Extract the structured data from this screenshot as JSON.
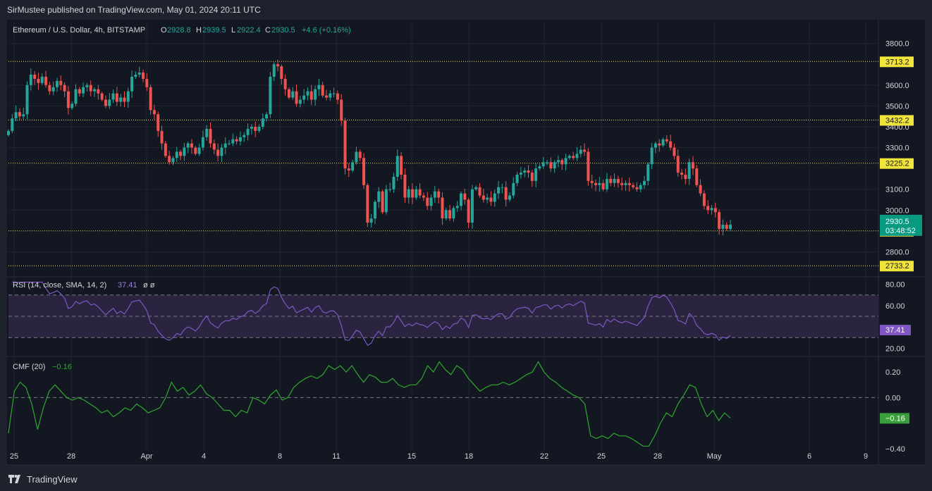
{
  "header": {
    "published": "SirMustee published on TradingView.com, May 01, 2024 20:11 UTC"
  },
  "legend": {
    "symbol": "Ethereum / U.S. Dollar, 4h, BITSTAMP",
    "o_label": "O",
    "o_value": "2928.8",
    "h_label": "H",
    "h_value": "2939.5",
    "l_label": "L",
    "l_value": "2922.4",
    "c_label": "C",
    "c_value": "2930.5",
    "change": "+4.6 (+0.16%)"
  },
  "rsi_legend": {
    "label": "RSI (14, close, SMA, 14, 2)",
    "value": "37.41",
    "extra": "ø  ø"
  },
  "cmf_legend": {
    "label": "CMF (20)",
    "value": "−0.16"
  },
  "footer": {
    "brand": "TradingView"
  },
  "colors": {
    "background": "#131722",
    "up": "#26a69a",
    "down": "#ef5350",
    "level_line": "#f5e25b",
    "level_label_bg": "#f0e43a",
    "last_price_bg": "#089981",
    "rsi_line": "#7e57c2",
    "rsi_band": "#2a2440",
    "cmf_line": "#2ea82e",
    "cmf_label_bg": "#3a9f3a",
    "axis_text": "#d1d4dc"
  },
  "chart_data": [
    {
      "type": "candlestick",
      "name": "Ethereum / U.S. Dollar, 4h, BITSTAMP",
      "x_ticks": [
        "25",
        "28",
        "Apr",
        "4",
        "8",
        "11",
        "15",
        "18",
        "22",
        "25",
        "28",
        "May",
        "6",
        "9"
      ],
      "y_ticks": [
        "3800.0",
        "3600.0",
        "3500.0",
        "3400.0",
        "3300.0",
        "3100.0",
        "3000.0",
        "2800.0"
      ],
      "ylim": [
        2690,
        3900
      ],
      "levels": [
        "3713.2",
        "3432.2",
        "3225.2",
        "2900.4",
        "2733.2"
      ],
      "last_price": "2930.5",
      "countdown": "03:48:52",
      "closes": [
        3380,
        3440,
        3470,
        3450,
        3460,
        3600,
        3650,
        3630,
        3610,
        3640,
        3600,
        3570,
        3590,
        3620,
        3600,
        3570,
        3490,
        3510,
        3580,
        3560,
        3590,
        3600,
        3570,
        3580,
        3560,
        3530,
        3500,
        3530,
        3560,
        3520,
        3540,
        3520,
        3570,
        3640,
        3650,
        3660,
        3630,
        3590,
        3480,
        3460,
        3380,
        3320,
        3260,
        3230,
        3250,
        3280,
        3260,
        3300,
        3320,
        3300,
        3270,
        3300,
        3350,
        3390,
        3320,
        3290,
        3260,
        3300,
        3320,
        3320,
        3340,
        3330,
        3350,
        3360,
        3390,
        3400,
        3380,
        3400,
        3440,
        3460,
        3640,
        3700,
        3690,
        3630,
        3580,
        3540,
        3570,
        3510,
        3530,
        3550,
        3570,
        3530,
        3580,
        3600,
        3550,
        3540,
        3560,
        3560,
        3530,
        3430,
        3200,
        3190,
        3230,
        3280,
        3250,
        3120,
        2940,
        2960,
        3040,
        3090,
        2990,
        3100,
        3100,
        3160,
        3260,
        3170,
        3060,
        3100,
        3060,
        3100,
        3070,
        3060,
        3020,
        3060,
        3090,
        3060,
        2960,
        3000,
        2960,
        3010,
        3020,
        3080,
        3050,
        2940,
        3100,
        3110,
        3070,
        3050,
        3060,
        3040,
        3080,
        3110,
        3110,
        3050,
        3070,
        3130,
        3170,
        3180,
        3190,
        3180,
        3140,
        3200,
        3210,
        3230,
        3230,
        3200,
        3230,
        3240,
        3220,
        3250,
        3260,
        3250,
        3270,
        3290,
        3280,
        3140,
        3130,
        3120,
        3130,
        3100,
        3150,
        3130,
        3150,
        3130,
        3120,
        3130,
        3120,
        3110,
        3100,
        3120,
        3140,
        3220,
        3300,
        3320,
        3310,
        3340,
        3330,
        3300,
        3260,
        3180,
        3170,
        3150,
        3230,
        3200,
        3120,
        3080,
        3020,
        3000,
        3010,
        2990,
        2910,
        2930,
        2910,
        2930
      ]
    },
    {
      "type": "line",
      "name": "RSI (14, close, SMA, 14, 2)",
      "y_ticks": [
        "80.00",
        "60.00",
        "20.00"
      ],
      "ylim": [
        15,
        85
      ],
      "band": [
        30,
        70
      ],
      "midline": 50,
      "last_value": "37.41"
    },
    {
      "type": "line",
      "name": "CMF (20)",
      "y_ticks": [
        "0.20",
        "0.00",
        "−0.40"
      ],
      "ylim": [
        -0.5,
        0.3
      ],
      "zero_line": 0,
      "last_value": "−0.16",
      "values": [
        -0.28,
        0.05,
        0.12,
        0.08,
        -0.05,
        -0.25,
        -0.08,
        0.05,
        0.1,
        0.05,
        0.0,
        -0.02,
        0.0,
        -0.02,
        -0.05,
        -0.08,
        -0.12,
        -0.1,
        -0.15,
        -0.12,
        -0.08,
        -0.1,
        -0.05,
        -0.08,
        -0.12,
        -0.1,
        -0.08,
        0.0,
        0.12,
        0.05,
        0.08,
        0.02,
        0.05,
        0.1,
        0.03,
        0.0,
        -0.05,
        -0.1,
        -0.1,
        -0.15,
        -0.1,
        -0.12,
        0.0,
        -0.02,
        -0.05,
        0.02,
        0.06,
        -0.02,
        0.0,
        0.08,
        0.12,
        0.15,
        0.17,
        0.15,
        0.18,
        0.25,
        0.22,
        0.25,
        0.2,
        0.25,
        0.18,
        0.12,
        0.18,
        0.16,
        0.12,
        0.12,
        0.15,
        0.1,
        0.08,
        0.1,
        0.1,
        0.15,
        0.25,
        0.2,
        0.28,
        0.22,
        0.18,
        0.25,
        0.22,
        0.15,
        0.1,
        0.05,
        0.08,
        0.1,
        0.1,
        0.12,
        0.1,
        0.12,
        0.15,
        0.18,
        0.2,
        0.28,
        0.2,
        0.15,
        0.12,
        0.08,
        0.05,
        0.02,
        0.0,
        -0.05,
        -0.3,
        -0.32,
        -0.3,
        -0.32,
        -0.28,
        -0.3,
        -0.3,
        -0.32,
        -0.35,
        -0.38,
        -0.38,
        -0.3,
        -0.2,
        -0.12,
        -0.15,
        -0.05,
        0.02,
        0.1,
        0.08,
        -0.05,
        -0.15,
        -0.1,
        -0.18,
        -0.12,
        -0.16
      ]
    }
  ],
  "x_labels": [
    "25",
    "28",
    "Apr",
    "4",
    "8",
    "11",
    "15",
    "18",
    "22",
    "25",
    "28",
    "May",
    "6",
    "9"
  ]
}
